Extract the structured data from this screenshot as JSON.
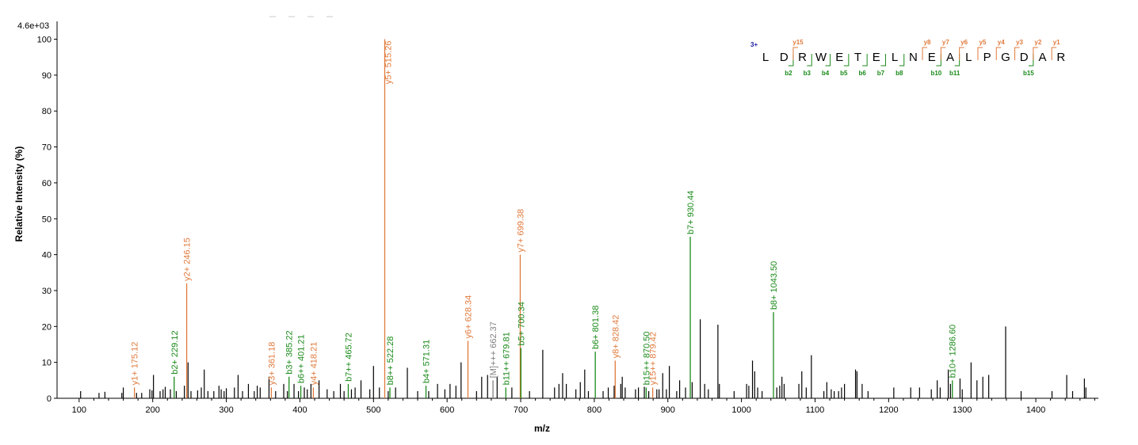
{
  "chart_data": {
    "type": "bar",
    "max_intensity_label": "4.6e+03",
    "xlabel": "m/z",
    "ylabel": "Relative  Intensity (%)",
    "xlim": [
      70,
      1485
    ],
    "ylim": [
      0,
      101
    ],
    "x_ticks": [
      100,
      200,
      300,
      400,
      500,
      600,
      700,
      800,
      900,
      1000,
      1100,
      1200,
      1300,
      1400
    ],
    "y_ticks": [
      0,
      10,
      20,
      30,
      40,
      50,
      60,
      70,
      80,
      90,
      100
    ],
    "colors": {
      "y_ion": "#e07a3c",
      "b_ion": "#1a8a1a",
      "precursor": "#808080",
      "unassigned": "#000000",
      "charge": "#1a1aa0"
    },
    "annotated_peaks": [
      {
        "mz": 175.12,
        "intensity": 3.0,
        "ion": "y",
        "label": "y1+ 175.12"
      },
      {
        "mz": 229.12,
        "intensity": 6.0,
        "ion": "b",
        "label": "b2+ 229.12"
      },
      {
        "mz": 246.15,
        "intensity": 32.0,
        "ion": "y",
        "label": "y2+ 246.15"
      },
      {
        "mz": 361.18,
        "intensity": 3.0,
        "ion": "y",
        "label": "y3+ 361.18"
      },
      {
        "mz": 385.22,
        "intensity": 6.0,
        "ion": "b",
        "label": "b3+ 385.22"
      },
      {
        "mz": 401.21,
        "intensity": 3.5,
        "ion": "b",
        "label": "b6++ 401.21"
      },
      {
        "mz": 418.21,
        "intensity": 3.0,
        "ion": "y",
        "label": "y4+ 418.21"
      },
      {
        "mz": 465.72,
        "intensity": 4.0,
        "ion": "b",
        "label": "b7++ 465.72"
      },
      {
        "mz": 515.26,
        "intensity": 100.0,
        "ion": "y",
        "label": "y5+ 515.26"
      },
      {
        "mz": 522.28,
        "intensity": 3.0,
        "ion": "b",
        "label": "b8++ 522.28"
      },
      {
        "mz": 571.31,
        "intensity": 3.5,
        "ion": "b",
        "label": "b4+ 571.31"
      },
      {
        "mz": 628.34,
        "intensity": 16.0,
        "ion": "y",
        "label": "y6+ 628.34"
      },
      {
        "mz": 662.37,
        "intensity": 5.0,
        "ion": "p",
        "label": "[M]+++ 662.37"
      },
      {
        "mz": 679.81,
        "intensity": 3.0,
        "ion": "b",
        "label": "b11++ 679.81"
      },
      {
        "mz": 699.38,
        "intensity": 40.0,
        "ion": "y",
        "label": "y7+ 699.38"
      },
      {
        "mz": 700.34,
        "intensity": 14.0,
        "ion": "b",
        "label": "b5+ 700.34"
      },
      {
        "mz": 801.38,
        "intensity": 13.0,
        "ion": "b",
        "label": "b6+ 801.38"
      },
      {
        "mz": 828.42,
        "intensity": 10.5,
        "ion": "y",
        "label": "y8+ 828.42"
      },
      {
        "mz": 870.5,
        "intensity": 3.0,
        "ion": "b",
        "label": "b15++ 870.50"
      },
      {
        "mz": 879.42,
        "intensity": 3.0,
        "ion": "y",
        "label": "y15++ 879.42"
      },
      {
        "mz": 930.44,
        "intensity": 45.0,
        "ion": "b",
        "label": "b7+ 930.44"
      },
      {
        "mz": 1043.5,
        "intensity": 24.0,
        "ion": "b",
        "label": "b8+ 1043.50"
      },
      {
        "mz": 1286.6,
        "intensity": 5.0,
        "ion": "b",
        "label": "b10+ 1286.60"
      }
    ],
    "other_peaks": [
      [
        102,
        2
      ],
      [
        127,
        1.5
      ],
      [
        135,
        1.8
      ],
      [
        158,
        1.5
      ],
      [
        160,
        3
      ],
      [
        178,
        1.5
      ],
      [
        185,
        1.5
      ],
      [
        196,
        2.5
      ],
      [
        199,
        2.2
      ],
      [
        201,
        6.5
      ],
      [
        210,
        2
      ],
      [
        214,
        2.5
      ],
      [
        217,
        3.2
      ],
      [
        224,
        2.5
      ],
      [
        232,
        2
      ],
      [
        243,
        3.5
      ],
      [
        248,
        10
      ],
      [
        252,
        2
      ],
      [
        261,
        2.2
      ],
      [
        266,
        3
      ],
      [
        270,
        8
      ],
      [
        275,
        2
      ],
      [
        283,
        2
      ],
      [
        290,
        3.5
      ],
      [
        293,
        2.5
      ],
      [
        297,
        2
      ],
      [
        300,
        2.8
      ],
      [
        311,
        3
      ],
      [
        316,
        6.5
      ],
      [
        322,
        2
      ],
      [
        330,
        4
      ],
      [
        338,
        2
      ],
      [
        342,
        3.5
      ],
      [
        346,
        3
      ],
      [
        358,
        6
      ],
      [
        367,
        2
      ],
      [
        378,
        4
      ],
      [
        383,
        2
      ],
      [
        392,
        4
      ],
      [
        398,
        2
      ],
      [
        406,
        3
      ],
      [
        410,
        2.5
      ],
      [
        415,
        4
      ],
      [
        426,
        5
      ],
      [
        437,
        2.5
      ],
      [
        446,
        2
      ],
      [
        455,
        4
      ],
      [
        460,
        2
      ],
      [
        470,
        2.5
      ],
      [
        475,
        3
      ],
      [
        483,
        5
      ],
      [
        495,
        2.5
      ],
      [
        500,
        9
      ],
      [
        508,
        3
      ],
      [
        520,
        2
      ],
      [
        530,
        3
      ],
      [
        546,
        8.5
      ],
      [
        560,
        2
      ],
      [
        575,
        2
      ],
      [
        587,
        4
      ],
      [
        597,
        2.5
      ],
      [
        604,
        4
      ],
      [
        612,
        3.5
      ],
      [
        619,
        10
      ],
      [
        640,
        2
      ],
      [
        647,
        6
      ],
      [
        655,
        6.5
      ],
      [
        668,
        6
      ],
      [
        688,
        3
      ],
      [
        712,
        2
      ],
      [
        730,
        13.5
      ],
      [
        746,
        3
      ],
      [
        752,
        4
      ],
      [
        757,
        7
      ],
      [
        762,
        4
      ],
      [
        775,
        2.5
      ],
      [
        781,
        4.5
      ],
      [
        787,
        8
      ],
      [
        792,
        2
      ],
      [
        812,
        2
      ],
      [
        819,
        3
      ],
      [
        827,
        3.5
      ],
      [
        836,
        4
      ],
      [
        838,
        6
      ],
      [
        842,
        3
      ],
      [
        856,
        2.5
      ],
      [
        860,
        3
      ],
      [
        868,
        3.2
      ],
      [
        874,
        2
      ],
      [
        885,
        2.5
      ],
      [
        888,
        2.5
      ],
      [
        893,
        7
      ],
      [
        898,
        2.5
      ],
      [
        902,
        9
      ],
      [
        912,
        2
      ],
      [
        916,
        5
      ],
      [
        924,
        3
      ],
      [
        933,
        4.5
      ],
      [
        944,
        22
      ],
      [
        950,
        4
      ],
      [
        955,
        2.5
      ],
      [
        968,
        20.5
      ],
      [
        970,
        4
      ],
      [
        990,
        2
      ],
      [
        1007,
        4
      ],
      [
        1010,
        3.5
      ],
      [
        1015,
        10.5
      ],
      [
        1018,
        7.5
      ],
      [
        1022,
        3
      ],
      [
        1028,
        2
      ],
      [
        1048,
        3
      ],
      [
        1052,
        3.5
      ],
      [
        1055,
        6
      ],
      [
        1058,
        4
      ],
      [
        1078,
        4
      ],
      [
        1082,
        7.5
      ],
      [
        1088,
        3
      ],
      [
        1095,
        12
      ],
      [
        1112,
        2
      ],
      [
        1116,
        4.5
      ],
      [
        1122,
        2.5
      ],
      [
        1126,
        2
      ],
      [
        1132,
        2
      ],
      [
        1136,
        3
      ],
      [
        1140,
        4
      ],
      [
        1155,
        8
      ],
      [
        1157,
        7.5
      ],
      [
        1164,
        4
      ],
      [
        1172,
        2
      ],
      [
        1207,
        3
      ],
      [
        1230,
        3
      ],
      [
        1242,
        3
      ],
      [
        1258,
        2.5
      ],
      [
        1266,
        5
      ],
      [
        1270,
        3
      ],
      [
        1281,
        8
      ],
      [
        1284,
        4
      ],
      [
        1297,
        5.5
      ],
      [
        1300,
        2.5
      ],
      [
        1312,
        10
      ],
      [
        1320,
        5
      ],
      [
        1328,
        6
      ],
      [
        1336,
        6.5
      ],
      [
        1359,
        20
      ],
      [
        1380,
        2
      ],
      [
        1422,
        2
      ],
      [
        1442,
        6.5
      ],
      [
        1450,
        2
      ],
      [
        1466,
        5.5
      ],
      [
        1468,
        3
      ]
    ]
  },
  "sequence": {
    "charge_label": "3+",
    "residues": [
      "L",
      "D",
      "R",
      "W",
      "E",
      "T",
      "E",
      "L",
      "N",
      "E",
      "A",
      "L",
      "P",
      "G",
      "D",
      "A",
      "R"
    ],
    "b_ions": [
      {
        "after": 2,
        "label": "b2"
      },
      {
        "after": 3,
        "label": "b3"
      },
      {
        "after": 4,
        "label": "b4"
      },
      {
        "after": 5,
        "label": "b5"
      },
      {
        "after": 6,
        "label": "b6"
      },
      {
        "after": 7,
        "label": "b7"
      },
      {
        "after": 8,
        "label": "b8"
      },
      {
        "after": 10,
        "label": "b10"
      },
      {
        "after": 11,
        "label": "b11"
      },
      {
        "after": 15,
        "label": "b15"
      }
    ],
    "y_ions": [
      {
        "after": 2,
        "label": "y15"
      },
      {
        "after": 9,
        "label": "y8"
      },
      {
        "after": 10,
        "label": "y7"
      },
      {
        "after": 11,
        "label": "y6"
      },
      {
        "after": 12,
        "label": "y5"
      },
      {
        "after": 13,
        "label": "y4"
      },
      {
        "after": 14,
        "label": "y3"
      },
      {
        "after": 15,
        "label": "y2"
      },
      {
        "after": 16,
        "label": "y1"
      }
    ]
  }
}
